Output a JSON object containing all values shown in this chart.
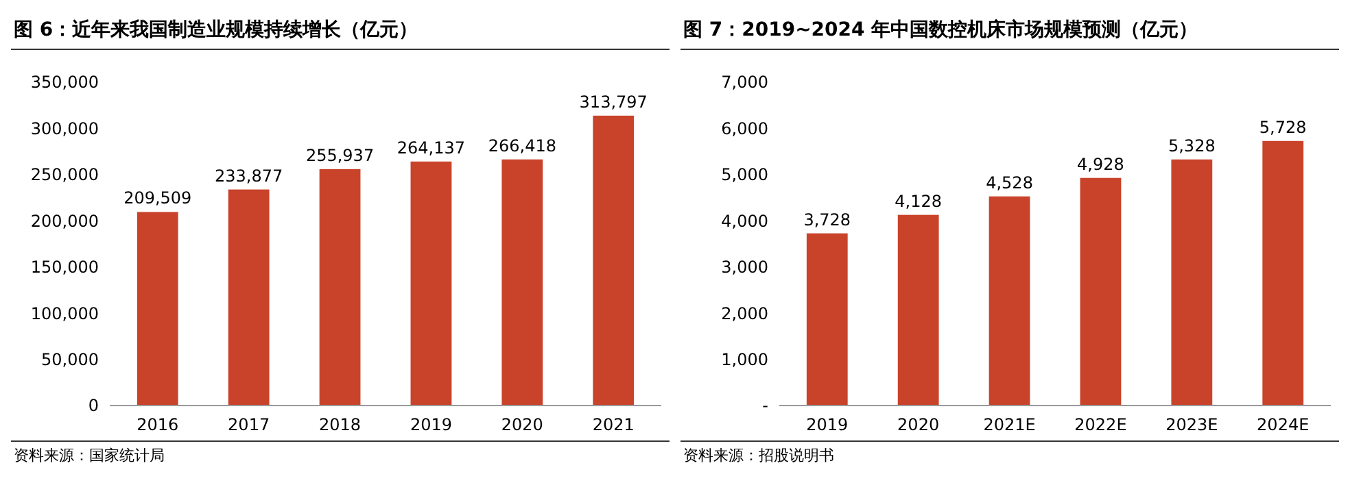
{
  "chart_data": [
    {
      "type": "bar",
      "title": "图 6：近年来我国制造业规模持续增长（亿元）",
      "categories": [
        "2016",
        "2017",
        "2018",
        "2019",
        "2020",
        "2021"
      ],
      "values": [
        209509,
        233877,
        255937,
        264137,
        266418,
        313797
      ],
      "value_labels": [
        "209,509",
        "233,877",
        "255,937",
        "264,137",
        "266,418",
        "313,797"
      ],
      "color": "#c9432a",
      "ylim": [
        0,
        350000
      ],
      "yticks": [
        {
          "value": 0,
          "label": "0"
        },
        {
          "value": 50000,
          "label": "50,000"
        },
        {
          "value": 100000,
          "label": "100,000"
        },
        {
          "value": 150000,
          "label": "150,000"
        },
        {
          "value": 200000,
          "label": "200,000"
        },
        {
          "value": 250000,
          "label": "250,000"
        },
        {
          "value": 300000,
          "label": "300,000"
        },
        {
          "value": 350000,
          "label": "350,000"
        }
      ],
      "annotations": [
        "资料来源：国家统计局"
      ]
    },
    {
      "type": "bar",
      "title": "图 7：2019~2024 年中国数控机床市场规模预测（亿元）",
      "categories": [
        "2019",
        "2020",
        "2021E",
        "2022E",
        "2023E",
        "2024E"
      ],
      "values": [
        3728,
        4128,
        4528,
        4928,
        5328,
        5728
      ],
      "value_labels": [
        "3,728",
        "4,128",
        "4,528",
        "4,928",
        "5,328",
        "5,728"
      ],
      "color": "#c9432a",
      "ylim": [
        0,
        7000
      ],
      "yticks": [
        {
          "value": 0,
          "label": "-"
        },
        {
          "value": 1000,
          "label": "1,000"
        },
        {
          "value": 2000,
          "label": "2,000"
        },
        {
          "value": 3000,
          "label": "3,000"
        },
        {
          "value": 4000,
          "label": "4,000"
        },
        {
          "value": 5000,
          "label": "5,000"
        },
        {
          "value": 6000,
          "label": "6,000"
        },
        {
          "value": 7000,
          "label": "7,000"
        }
      ],
      "annotations": [
        "资料来源：招股说明书"
      ]
    }
  ]
}
